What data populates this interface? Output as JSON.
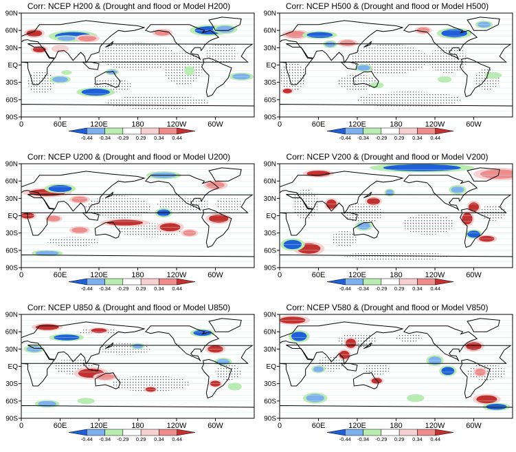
{
  "panels": [
    {
      "title": "Corr: NCEP H200 & (Drought and flood or Model H200)"
    },
    {
      "title": "Corr: NCEP H500 & (Drought and flood or Model H500)"
    },
    {
      "title": "Corr: NCEP U200 & (Drought and flood or Model U200)"
    },
    {
      "title": "Corr: NCEP V200 & (Drought and flood or Model V200)"
    },
    {
      "title": "Corr: NCEP U850 & (Drought and flood or Model U850)"
    },
    {
      "title": "Corr: NCEP V580 & (Drought and flood or Model V850)"
    }
  ],
  "lat_labels": [
    "90N",
    "60N",
    "30N",
    "EQ",
    "30S",
    "60S",
    "90S"
  ],
  "lon_labels": [
    "0",
    "60E",
    "120E",
    "180",
    "120W",
    "60W"
  ],
  "colorbar": {
    "labels": [
      "-0.44",
      "-0.34",
      "-0.29",
      "0.29",
      "0.34",
      "0.44"
    ],
    "colors": [
      "#1f5fd8",
      "#7fb0ee",
      "#b9ecb0",
      "#ffffff",
      "#f7d0d0",
      "#ee8c8c",
      "#c23030"
    ]
  }
}
